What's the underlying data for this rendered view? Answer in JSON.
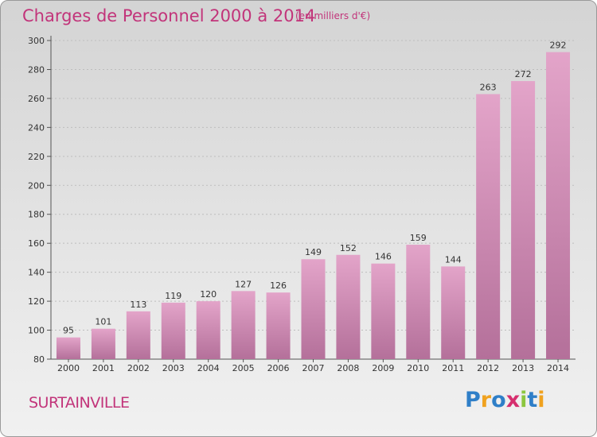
{
  "header": {
    "title": "Charges de Personnel 2000 à 2014",
    "subtitle": "(en milliers d'€)"
  },
  "footer": {
    "commune": "SURTAINVILLE",
    "logo": {
      "letters": [
        "P",
        "r",
        "o",
        "x",
        "i",
        "t",
        "i"
      ],
      "colors": [
        "#2f7fc8",
        "#f0a21f",
        "#2f7fc8",
        "#d62f6e",
        "#8cc63f",
        "#2f7fc8",
        "#f0a21f"
      ]
    }
  },
  "chart_data": {
    "type": "bar",
    "categories": [
      "2000",
      "2001",
      "2002",
      "2003",
      "2004",
      "2005",
      "2006",
      "2007",
      "2008",
      "2009",
      "2010",
      "2011",
      "2012",
      "2013",
      "2014"
    ],
    "values": [
      95,
      101,
      113,
      119,
      120,
      127,
      126,
      149,
      152,
      146,
      159,
      144,
      263,
      272,
      292
    ],
    "ylim": [
      80,
      300
    ],
    "yticks": [
      80,
      100,
      120,
      140,
      160,
      180,
      200,
      220,
      240,
      260,
      280,
      300
    ],
    "grid": true,
    "colors": {
      "bar_top": "#e3a4c9",
      "bar_bottom": "#b4709a",
      "text": "#333333",
      "grid": "#bdbdbd"
    }
  }
}
